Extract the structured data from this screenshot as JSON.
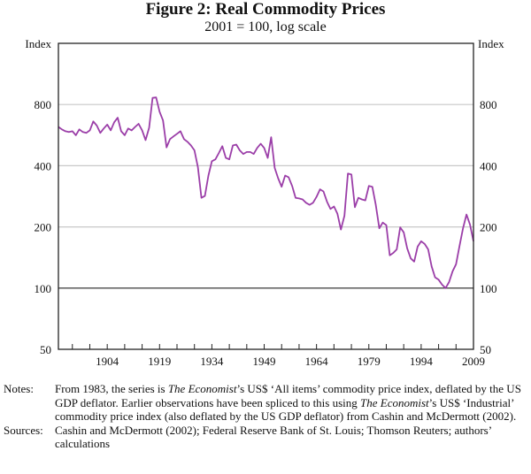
{
  "chart_data": {
    "type": "line",
    "title": "Figure 2: Real Commodity Prices",
    "subtitle": "2001 = 100, log scale",
    "ylabel_left": "Index",
    "ylabel_right": "Index",
    "xlabel": "",
    "yscale": "log",
    "ylim": [
      50,
      1600
    ],
    "yticks": [
      50,
      100,
      200,
      400,
      800
    ],
    "ytick_labels": [
      "50",
      "100",
      "200",
      "400",
      "800"
    ],
    "xlim": [
      1890,
      2009
    ],
    "xticks_major": [
      1904,
      1919,
      1934,
      1949,
      1964,
      1979,
      1994,
      2009
    ],
    "xtick_labels": [
      "1904",
      "1919",
      "1934",
      "1949",
      "1964",
      "1979",
      "1994",
      "2009"
    ],
    "xtick_minor_step": 5,
    "grid": true,
    "reference_line": 100,
    "legend": "none",
    "series": [
      {
        "name": "Real commodity prices",
        "color": "#9b3ea8",
        "x": [
          1890,
          1891,
          1892,
          1893,
          1894,
          1895,
          1896,
          1897,
          1898,
          1899,
          1900,
          1901,
          1902,
          1903,
          1904,
          1905,
          1906,
          1907,
          1908,
          1909,
          1910,
          1911,
          1912,
          1913,
          1914,
          1915,
          1916,
          1917,
          1918,
          1919,
          1920,
          1921,
          1922,
          1923,
          1924,
          1925,
          1926,
          1927,
          1928,
          1929,
          1930,
          1931,
          1932,
          1933,
          1934,
          1935,
          1936,
          1937,
          1938,
          1939,
          1940,
          1941,
          1942,
          1943,
          1944,
          1945,
          1946,
          1947,
          1948,
          1949,
          1950,
          1951,
          1952,
          1953,
          1954,
          1955,
          1956,
          1957,
          1958,
          1959,
          1960,
          1961,
          1962,
          1963,
          1964,
          1965,
          1966,
          1967,
          1968,
          1969,
          1970,
          1971,
          1972,
          1973,
          1974,
          1975,
          1976,
          1977,
          1978,
          1979,
          1980,
          1981,
          1982,
          1983,
          1984,
          1985,
          1986,
          1987,
          1988,
          1989,
          1990,
          1991,
          1992,
          1993,
          1994,
          1995,
          1996,
          1997,
          1998,
          1999,
          2000,
          2001,
          2002,
          2003,
          2004,
          2005,
          2006,
          2007,
          2008,
          2009
        ],
        "values": [
          621,
          604,
          591,
          586,
          591,
          565,
          604,
          586,
          580,
          597,
          661,
          630,
          580,
          610,
          637,
          597,
          655,
          689,
          591,
          565,
          610,
          597,
          621,
          643,
          597,
          535,
          615,
          862,
          867,
          738,
          668,
          492,
          541,
          558,
          574,
          591,
          541,
          525,
          503,
          476,
          394,
          278,
          284,
          358,
          421,
          430,
          462,
          499,
          437,
          430,
          503,
          508,
          476,
          457,
          467,
          467,
          457,
          489,
          513,
          489,
          437,
          552,
          390,
          347,
          315,
          358,
          351,
          318,
          278,
          276,
          273,
          263,
          257,
          263,
          281,
          306,
          299,
          266,
          245,
          252,
          232,
          194,
          227,
          366,
          362,
          250,
          278,
          273,
          270,
          318,
          315,
          257,
          197,
          210,
          204,
          145,
          149,
          155,
          199,
          188,
          157,
          140,
          135,
          160,
          170,
          165,
          155,
          128,
          113,
          110,
          104,
          100,
          107,
          121,
          131,
          161,
          197,
          230,
          205,
          170
        ]
      }
    ]
  },
  "notes": {
    "notes_label": "Notes:",
    "notes_parts": {
      "p1": "From 1983, the series is ",
      "em1": "The Economist",
      "p2": "’s US$ ‘All items’ commodity price index, deflated by the US GDP deflator. Earlier observations have been spliced to this using ",
      "em2": "The Economist",
      "p3": "’s US$ ‘Industrial’ commodity price index (also deflated by the US GDP deflator) from Cashin and McDermott (2002)."
    },
    "sources_label": "Sources:",
    "sources_text": "Cashin and McDermott (2002); Federal Reserve Bank of St. Louis; Thomson Reuters; authors’ calculations"
  }
}
